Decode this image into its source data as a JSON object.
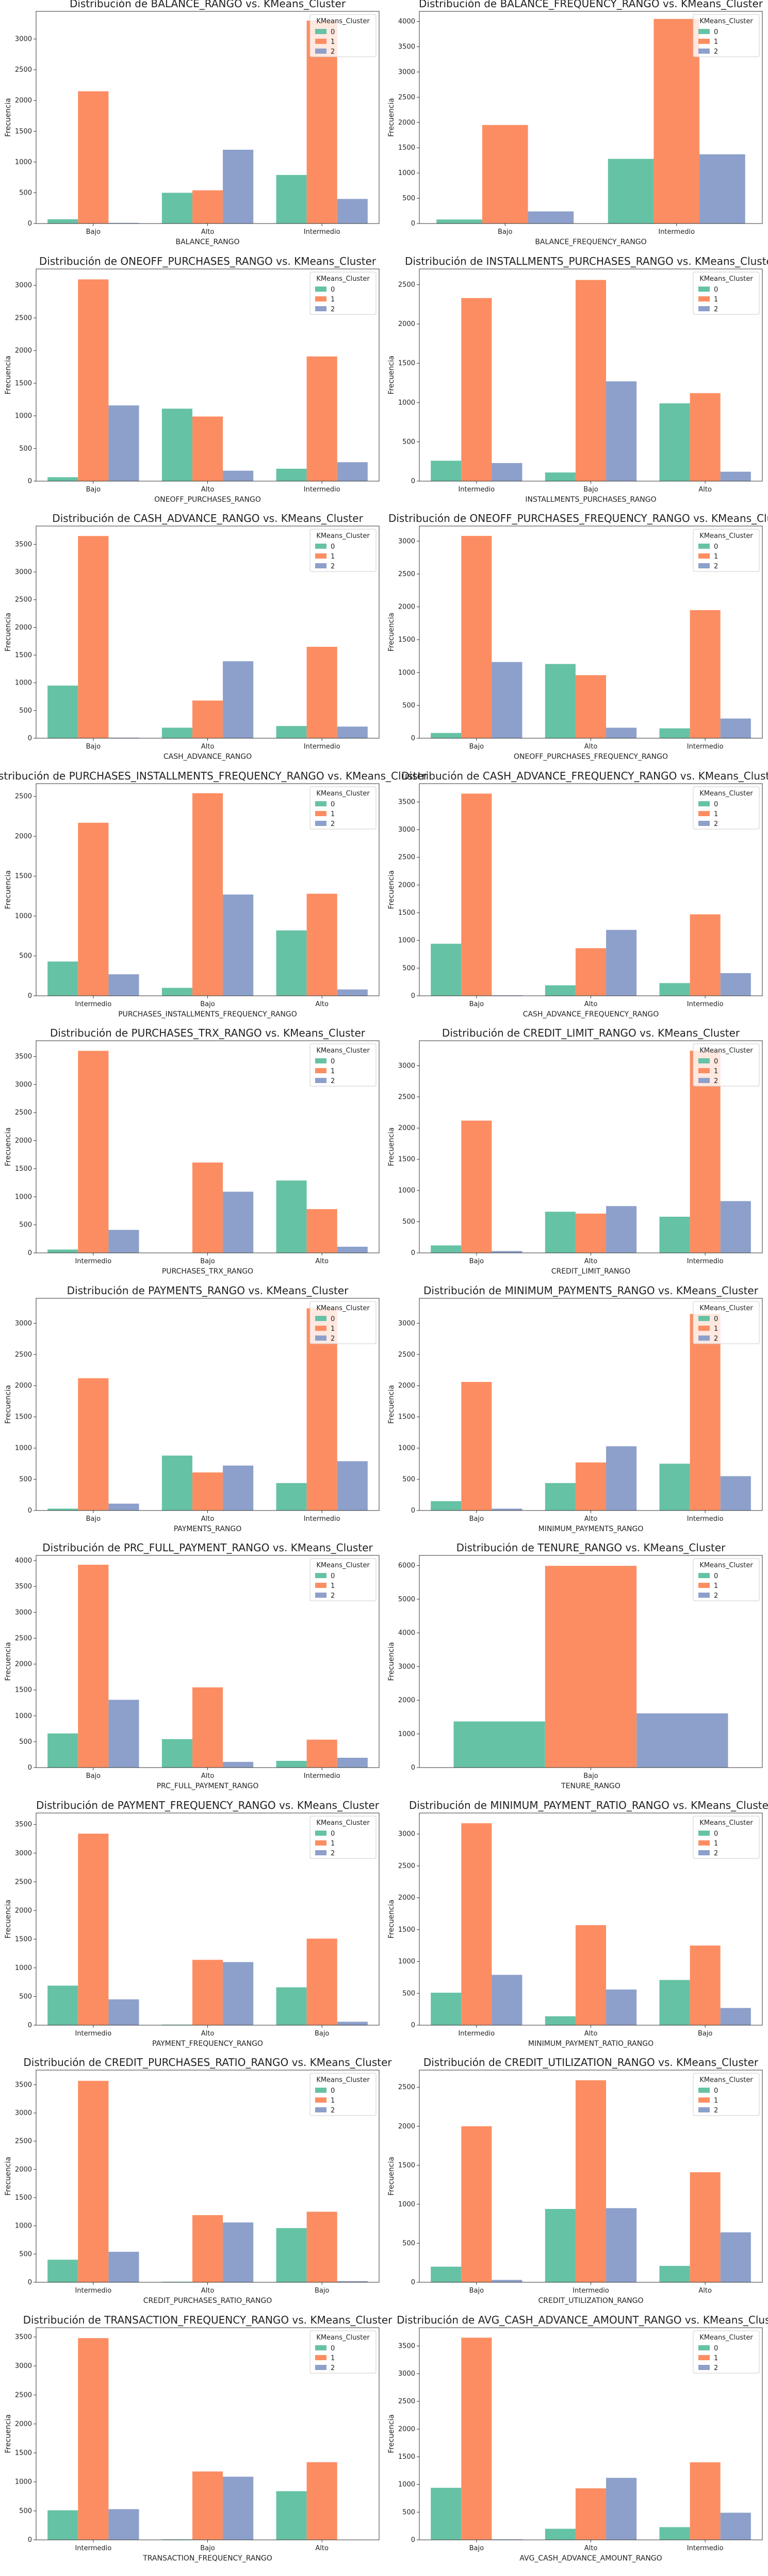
{
  "colors": {
    "0": "#66c2a5",
    "1": "#fc8d62",
    "2": "#8da0cb"
  },
  "legend_title": "KMeans_Cluster",
  "legend_labels": [
    "0",
    "1",
    "2"
  ],
  "ylabel": "Frecuencia",
  "chart_data": [
    {
      "type": "bar",
      "title": "Distribución de BALANCE_RANGO vs. KMeans_Cluster",
      "xlabel": "BALANCE_RANGO",
      "ylabel": "Frecuencia",
      "ylim": [
        0,
        3450
      ],
      "yticks": [
        0,
        500,
        1000,
        1500,
        2000,
        2500,
        3000
      ],
      "categories": [
        "Bajo",
        "Alto",
        "Intermedio"
      ],
      "series": [
        {
          "name": "0",
          "values": [
            70,
            500,
            790
          ]
        },
        {
          "name": "1",
          "values": [
            2150,
            540,
            3300
          ]
        },
        {
          "name": "2",
          "values": [
            10,
            1200,
            400
          ]
        }
      ]
    },
    {
      "type": "bar",
      "title": "Distribución de BALANCE_FREQUENCY_RANGO vs. KMeans_Cluster",
      "xlabel": "BALANCE_FREQUENCY_RANGO",
      "ylabel": "Frecuencia",
      "ylim": [
        0,
        4200
      ],
      "yticks": [
        0,
        500,
        1000,
        1500,
        2000,
        2500,
        3000,
        3500,
        4000
      ],
      "categories": [
        "Bajo",
        "Intermedio"
      ],
      "series": [
        {
          "name": "0",
          "values": [
            80,
            1280
          ]
        },
        {
          "name": "1",
          "values": [
            1950,
            4050
          ]
        },
        {
          "name": "2",
          "values": [
            240,
            1370
          ]
        }
      ]
    },
    {
      "type": "bar",
      "title": "Distribución de ONEOFF_PURCHASES_RANGO vs. KMeans_Cluster",
      "xlabel": "ONEOFF_PURCHASES_RANGO",
      "ylabel": "Frecuencia",
      "ylim": [
        0,
        3250
      ],
      "yticks": [
        0,
        500,
        1000,
        1500,
        2000,
        2500,
        3000
      ],
      "categories": [
        "Bajo",
        "Alto",
        "Intermedio"
      ],
      "series": [
        {
          "name": "0",
          "values": [
            60,
            1110,
            190
          ]
        },
        {
          "name": "1",
          "values": [
            3090,
            990,
            1910
          ]
        },
        {
          "name": "2",
          "values": [
            1160,
            160,
            290
          ]
        }
      ]
    },
    {
      "type": "bar",
      "title": "Distribución de INSTALLMENTS_PURCHASES_RANGO vs. KMeans_Cluster",
      "xlabel": "INSTALLMENTS_PURCHASES_RANGO",
      "ylabel": "Frecuencia",
      "ylim": [
        0,
        2700
      ],
      "yticks": [
        0,
        500,
        1000,
        1500,
        2000,
        2500
      ],
      "categories": [
        "Intermedio",
        "Bajo",
        "Alto"
      ],
      "series": [
        {
          "name": "0",
          "values": [
            260,
            110,
            990
          ]
        },
        {
          "name": "1",
          "values": [
            2330,
            2560,
            1120
          ]
        },
        {
          "name": "2",
          "values": [
            230,
            1270,
            120
          ]
        }
      ]
    },
    {
      "type": "bar",
      "title": "Distribución de CASH_ADVANCE_RANGO vs. KMeans_Cluster",
      "xlabel": "CASH_ADVANCE_RANGO",
      "ylabel": "Frecuencia",
      "ylim": [
        0,
        3830
      ],
      "yticks": [
        0,
        500,
        1000,
        1500,
        2000,
        2500,
        3000,
        3500
      ],
      "categories": [
        "Bajo",
        "Alto",
        "Intermedio"
      ],
      "series": [
        {
          "name": "0",
          "values": [
            950,
            190,
            220
          ]
        },
        {
          "name": "1",
          "values": [
            3650,
            680,
            1650
          ]
        },
        {
          "name": "2",
          "values": [
            10,
            1390,
            210
          ]
        }
      ]
    },
    {
      "type": "bar",
      "title": "Distribución de ONEOFF_PURCHASES_FREQUENCY_RANGO vs. KMeans_Cluster",
      "xlabel": "ONEOFF_PURCHASES_FREQUENCY_RANGO",
      "ylabel": "Frecuencia",
      "ylim": [
        0,
        3230
      ],
      "yticks": [
        0,
        500,
        1000,
        1500,
        2000,
        2500,
        3000
      ],
      "categories": [
        "Bajo",
        "Alto",
        "Intermedio"
      ],
      "series": [
        {
          "name": "0",
          "values": [
            80,
            1130,
            150
          ]
        },
        {
          "name": "1",
          "values": [
            3080,
            960,
            1950
          ]
        },
        {
          "name": "2",
          "values": [
            1160,
            160,
            300
          ]
        }
      ]
    },
    {
      "type": "bar",
      "title": "Distribución de PURCHASES_INSTALLMENTS_FREQUENCY_RANGO vs. KMeans_Cluster",
      "xlabel": "PURCHASES_INSTALLMENTS_FREQUENCY_RANGO",
      "ylabel": "Frecuencia",
      "ylim": [
        0,
        2660
      ],
      "yticks": [
        0,
        500,
        1000,
        1500,
        2000,
        2500
      ],
      "categories": [
        "Intermedio",
        "Bajo",
        "Alto"
      ],
      "series": [
        {
          "name": "0",
          "values": [
            430,
            100,
            820
          ]
        },
        {
          "name": "1",
          "values": [
            2170,
            2540,
            1280
          ]
        },
        {
          "name": "2",
          "values": [
            270,
            1270,
            80
          ]
        }
      ]
    },
    {
      "type": "bar",
      "title": "Distribución de CASH_ADVANCE_FREQUENCY_RANGO vs. KMeans_Cluster",
      "xlabel": "CASH_ADVANCE_FREQUENCY_RANGO",
      "ylabel": "Frecuencia",
      "ylim": [
        0,
        3830
      ],
      "yticks": [
        0,
        500,
        1000,
        1500,
        2000,
        2500,
        3000,
        3500
      ],
      "categories": [
        "Bajo",
        "Alto",
        "Intermedio"
      ],
      "series": [
        {
          "name": "0",
          "values": [
            940,
            190,
            230
          ]
        },
        {
          "name": "1",
          "values": [
            3650,
            860,
            1470
          ]
        },
        {
          "name": "2",
          "values": [
            10,
            1190,
            410
          ]
        }
      ]
    },
    {
      "type": "bar",
      "title": "Distribución de PURCHASES_TRX_RANGO vs. KMeans_Cluster",
      "xlabel": "PURCHASES_TRX_RANGO",
      "ylabel": "Frecuencia",
      "ylim": [
        0,
        3780
      ],
      "yticks": [
        0,
        500,
        1000,
        1500,
        2000,
        2500,
        3000,
        3500
      ],
      "categories": [
        "Intermedio",
        "Bajo",
        "Alto"
      ],
      "series": [
        {
          "name": "0",
          "values": [
            60,
            0,
            1290
          ]
        },
        {
          "name": "1",
          "values": [
            3600,
            1610,
            780
          ]
        },
        {
          "name": "2",
          "values": [
            410,
            1090,
            110
          ]
        }
      ]
    },
    {
      "type": "bar",
      "title": "Distribución de CREDIT_LIMIT_RANGO vs. KMeans_Cluster",
      "xlabel": "CREDIT_LIMIT_RANGO",
      "ylabel": "Frecuencia",
      "ylim": [
        0,
        3400
      ],
      "yticks": [
        0,
        500,
        1000,
        1500,
        2000,
        2500,
        3000
      ],
      "categories": [
        "Bajo",
        "Alto",
        "Intermedio"
      ],
      "series": [
        {
          "name": "0",
          "values": [
            120,
            660,
            580
          ]
        },
        {
          "name": "1",
          "values": [
            2120,
            630,
            3240
          ]
        },
        {
          "name": "2",
          "values": [
            30,
            750,
            830
          ]
        }
      ]
    },
    {
      "type": "bar",
      "title": "Distribución de PAYMENTS_RANGO vs. KMeans_Cluster",
      "xlabel": "PAYMENTS_RANGO",
      "ylabel": "Frecuencia",
      "ylim": [
        0,
        3400
      ],
      "yticks": [
        0,
        500,
        1000,
        1500,
        2000,
        2500,
        3000
      ],
      "categories": [
        "Bajo",
        "Alto",
        "Intermedio"
      ],
      "series": [
        {
          "name": "0",
          "values": [
            30,
            880,
            440
          ]
        },
        {
          "name": "1",
          "values": [
            2120,
            610,
            3240
          ]
        },
        {
          "name": "2",
          "values": [
            110,
            720,
            790
          ]
        }
      ]
    },
    {
      "type": "bar",
      "title": "Distribución de MINIMUM_PAYMENTS_RANGO vs. KMeans_Cluster",
      "xlabel": "MINIMUM_PAYMENTS_RANGO",
      "ylabel": "Frecuencia",
      "ylim": [
        0,
        3400
      ],
      "yticks": [
        0,
        500,
        1000,
        1500,
        2000,
        2500,
        3000
      ],
      "categories": [
        "Bajo",
        "Alto",
        "Intermedio"
      ],
      "series": [
        {
          "name": "0",
          "values": [
            150,
            440,
            750
          ]
        },
        {
          "name": "1",
          "values": [
            2060,
            770,
            3150
          ]
        },
        {
          "name": "2",
          "values": [
            30,
            1030,
            550
          ]
        }
      ]
    },
    {
      "type": "bar",
      "title": "Distribución de PRC_FULL_PAYMENT_RANGO vs. KMeans_Cluster",
      "xlabel": "PRC_FULL_PAYMENT_RANGO",
      "ylabel": "Frecuencia",
      "ylim": [
        0,
        4100
      ],
      "yticks": [
        0,
        500,
        1000,
        1500,
        2000,
        2500,
        3000,
        3500,
        4000
      ],
      "categories": [
        "Bajo",
        "Alto",
        "Intermedio"
      ],
      "series": [
        {
          "name": "0",
          "values": [
            660,
            550,
            130
          ]
        },
        {
          "name": "1",
          "values": [
            3920,
            1550,
            540
          ]
        },
        {
          "name": "2",
          "values": [
            1310,
            110,
            190
          ]
        }
      ]
    },
    {
      "type": "bar",
      "title": "Distribución de TENURE_RANGO vs. KMeans_Cluster",
      "xlabel": "TENURE_RANGO",
      "ylabel": "Frecuencia",
      "ylim": [
        0,
        6300
      ],
      "yticks": [
        0,
        1000,
        2000,
        3000,
        4000,
        5000,
        6000
      ],
      "categories": [
        "Bajo"
      ],
      "series": [
        {
          "name": "0",
          "values": [
            1370
          ]
        },
        {
          "name": "1",
          "values": [
            5990
          ]
        },
        {
          "name": "2",
          "values": [
            1610
          ]
        }
      ]
    },
    {
      "type": "bar",
      "title": "Distribución de PAYMENT_FREQUENCY_RANGO vs. KMeans_Cluster",
      "xlabel": "PAYMENT_FREQUENCY_RANGO",
      "ylabel": "Frecuencia",
      "ylim": [
        0,
        3700
      ],
      "yticks": [
        0,
        500,
        1000,
        1500,
        2000,
        2500,
        3000,
        3500
      ],
      "categories": [
        "Intermedio",
        "Alto",
        "Bajo"
      ],
      "series": [
        {
          "name": "0",
          "values": [
            690,
            10,
            660
          ]
        },
        {
          "name": "1",
          "values": [
            3340,
            1140,
            1510
          ]
        },
        {
          "name": "2",
          "values": [
            450,
            1100,
            60
          ]
        }
      ]
    },
    {
      "type": "bar",
      "title": "Distribución de MINIMUM_PAYMENT_RATIO_RANGO vs. KMeans_Cluster",
      "xlabel": "MINIMUM_PAYMENT_RATIO_RANGO",
      "ylabel": "Frecuencia",
      "ylim": [
        0,
        3330
      ],
      "yticks": [
        0,
        500,
        1000,
        1500,
        2000,
        2500,
        3000
      ],
      "categories": [
        "Intermedio",
        "Alto",
        "Bajo"
      ],
      "series": [
        {
          "name": "0",
          "values": [
            510,
            140,
            710
          ]
        },
        {
          "name": "1",
          "values": [
            3170,
            1570,
            1250
          ]
        },
        {
          "name": "2",
          "values": [
            790,
            560,
            270
          ]
        }
      ]
    },
    {
      "type": "bar",
      "title": "Distribución de CREDIT_PURCHASES_RATIO_RANGO vs. KMeans_Cluster",
      "xlabel": "CREDIT_PURCHASES_RATIO_RANGO",
      "ylabel": "Frecuencia",
      "ylim": [
        0,
        3760
      ],
      "yticks": [
        0,
        500,
        1000,
        1500,
        2000,
        2500,
        3000,
        3500
      ],
      "categories": [
        "Intermedio",
        "Alto",
        "Bajo"
      ],
      "series": [
        {
          "name": "0",
          "values": [
            400,
            10,
            960
          ]
        },
        {
          "name": "1",
          "values": [
            3570,
            1190,
            1250
          ]
        },
        {
          "name": "2",
          "values": [
            540,
            1060,
            20
          ]
        }
      ]
    },
    {
      "type": "bar",
      "title": "Distribución de CREDIT_UTILIZATION_RANGO vs. KMeans_Cluster",
      "xlabel": "CREDIT_UTILIZATION_RANGO",
      "ylabel": "Frecuencia",
      "ylim": [
        0,
        2720
      ],
      "yticks": [
        0,
        500,
        1000,
        1500,
        2000,
        2500
      ],
      "categories": [
        "Bajo",
        "Intermedio",
        "Alto"
      ],
      "series": [
        {
          "name": "0",
          "values": [
            200,
            940,
            210
          ]
        },
        {
          "name": "1",
          "values": [
            2000,
            2590,
            1410
          ]
        },
        {
          "name": "2",
          "values": [
            30,
            950,
            640
          ]
        }
      ]
    },
    {
      "type": "bar",
      "title": "Distribución de TRANSACTION_FREQUENCY_RANGO vs. KMeans_Cluster",
      "xlabel": "TRANSACTION_FREQUENCY_RANGO",
      "ylabel": "Frecuencia",
      "ylim": [
        0,
        3660
      ],
      "yticks": [
        0,
        500,
        1000,
        1500,
        2000,
        2500,
        3000,
        3500
      ],
      "categories": [
        "Intermedio",
        "Bajo",
        "Alto"
      ],
      "series": [
        {
          "name": "0",
          "values": [
            510,
            10,
            840
          ]
        },
        {
          "name": "1",
          "values": [
            3480,
            1180,
            1340
          ]
        },
        {
          "name": "2",
          "values": [
            530,
            1090,
            0
          ]
        }
      ]
    },
    {
      "type": "bar",
      "title": "Distribución de AVG_CASH_ADVANCE_AMOUNT_RANGO vs. KMeans_Cluster",
      "xlabel": "AVG_CASH_ADVANCE_AMOUNT_RANGO",
      "ylabel": "Frecuencia",
      "ylim": [
        0,
        3830
      ],
      "yticks": [
        0,
        500,
        1000,
        1500,
        2000,
        2500,
        3000,
        3500
      ],
      "categories": [
        "Bajo",
        "Alto",
        "Intermedio"
      ],
      "series": [
        {
          "name": "0",
          "values": [
            940,
            200,
            230
          ]
        },
        {
          "name": "1",
          "values": [
            3650,
            930,
            1400
          ]
        },
        {
          "name": "2",
          "values": [
            10,
            1120,
            490
          ]
        }
      ]
    }
  ]
}
